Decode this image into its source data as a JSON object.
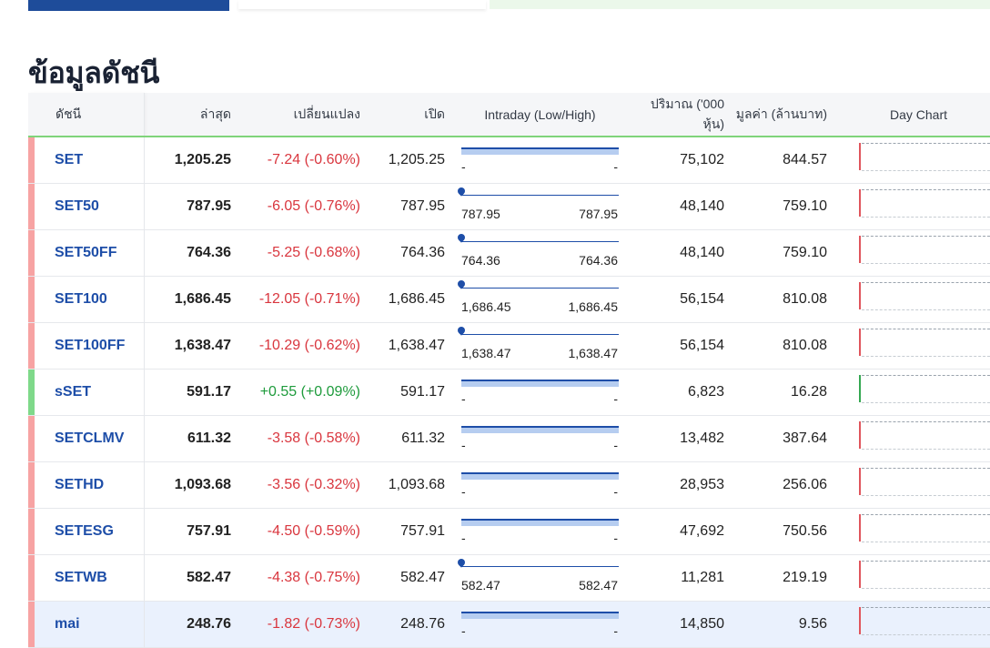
{
  "page_title": "ข้อมูลดัชนี",
  "colors": {
    "negative": "#d9363e",
    "positive": "#1e9b3c",
    "accent": "#1e4c9a",
    "header_border": "#7fd47a"
  },
  "columns": {
    "name": "ดัชนี",
    "last": "ล่าสุด",
    "change": "เปลี่ยนแปลง",
    "open": "เปิด",
    "intraday": "Intraday (Low/High)",
    "volume": "ปริมาณ ('000 หุ้น)",
    "value": "มูลค่า (ล้านบาท)",
    "daychart": "Day Chart"
  },
  "rows": [
    {
      "name": "SET",
      "last": "1,205.25",
      "change": "-7.24 (-0.60%)",
      "direction": "down",
      "open": "1,205.25",
      "low": "-",
      "high": "-",
      "volume": "75,102",
      "value": "844.57"
    },
    {
      "name": "SET50",
      "last": "787.95",
      "change": "-6.05 (-0.76%)",
      "direction": "down",
      "open": "787.95",
      "low": "787.95",
      "high": "787.95",
      "volume": "48,140",
      "value": "759.10"
    },
    {
      "name": "SET50FF",
      "last": "764.36",
      "change": "-5.25 (-0.68%)",
      "direction": "down",
      "open": "764.36",
      "low": "764.36",
      "high": "764.36",
      "volume": "48,140",
      "value": "759.10"
    },
    {
      "name": "SET100",
      "last": "1,686.45",
      "change": "-12.05 (-0.71%)",
      "direction": "down",
      "open": "1,686.45",
      "low": "1,686.45",
      "high": "1,686.45",
      "volume": "56,154",
      "value": "810.08"
    },
    {
      "name": "SET100FF",
      "last": "1,638.47",
      "change": "-10.29 (-0.62%)",
      "direction": "down",
      "open": "1,638.47",
      "low": "1,638.47",
      "high": "1,638.47",
      "volume": "56,154",
      "value": "810.08"
    },
    {
      "name": "sSET",
      "last": "591.17",
      "change": "+0.55 (+0.09%)",
      "direction": "up",
      "open": "591.17",
      "low": "-",
      "high": "-",
      "volume": "6,823",
      "value": "16.28"
    },
    {
      "name": "SETCLMV",
      "last": "611.32",
      "change": "-3.58 (-0.58%)",
      "direction": "down",
      "open": "611.32",
      "low": "-",
      "high": "-",
      "volume": "13,482",
      "value": "387.64"
    },
    {
      "name": "SETHD",
      "last": "1,093.68",
      "change": "-3.56 (-0.32%)",
      "direction": "down",
      "open": "1,093.68",
      "low": "-",
      "high": "-",
      "volume": "28,953",
      "value": "256.06"
    },
    {
      "name": "SETESG",
      "last": "757.91",
      "change": "-4.50 (-0.59%)",
      "direction": "down",
      "open": "757.91",
      "low": "-",
      "high": "-",
      "volume": "47,692",
      "value": "750.56"
    },
    {
      "name": "SETWB",
      "last": "582.47",
      "change": "-4.38 (-0.75%)",
      "direction": "down",
      "open": "582.47",
      "low": "582.47",
      "high": "582.47",
      "volume": "11,281",
      "value": "219.19"
    },
    {
      "name": "mai",
      "last": "248.76",
      "change": "-1.82 (-0.73%)",
      "direction": "down",
      "open": "248.76",
      "low": "-",
      "high": "-",
      "volume": "14,850",
      "value": "9.56"
    }
  ]
}
